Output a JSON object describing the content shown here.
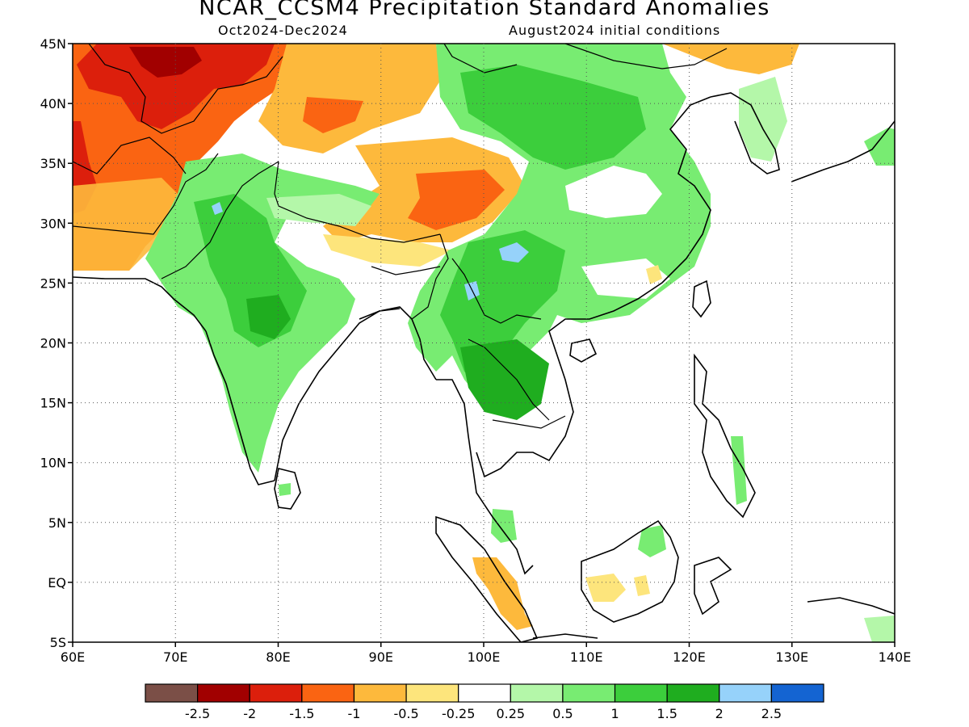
{
  "title": "NCAR_CCSM4 Precipitation Standard Anomalies",
  "subtitle_left": "Oct2024-Dec2024",
  "subtitle_right": "August2024 initial conditions",
  "map": {
    "lon_labels": [
      "60E",
      "70E",
      "80E",
      "90E",
      "100E",
      "110E",
      "120E",
      "130E",
      "140E"
    ],
    "lat_labels": [
      "45N",
      "40N",
      "35N",
      "30N",
      "25N",
      "20N",
      "15N",
      "10N",
      "5N",
      "EQ",
      "5S"
    ],
    "lon_range": [
      60,
      140
    ],
    "lat_range": [
      -5,
      45
    ],
    "grid": "dotted"
  },
  "colorbar": {
    "colors": [
      "#7b4f47",
      "#a10000",
      "#dc1f0c",
      "#fa6412",
      "#fdb93c",
      "#fde57c",
      "#ffffff",
      "#b4f7a9",
      "#78ec72",
      "#3cce3c",
      "#1fad1f",
      "#96d2fa",
      "#1464d2"
    ],
    "tick_labels": [
      "-2.5",
      "-2",
      "-1.5",
      "-1",
      "-0.5",
      "-0.25",
      "0.25",
      "0.5",
      "1",
      "1.5",
      "2",
      "2.5"
    ]
  }
}
